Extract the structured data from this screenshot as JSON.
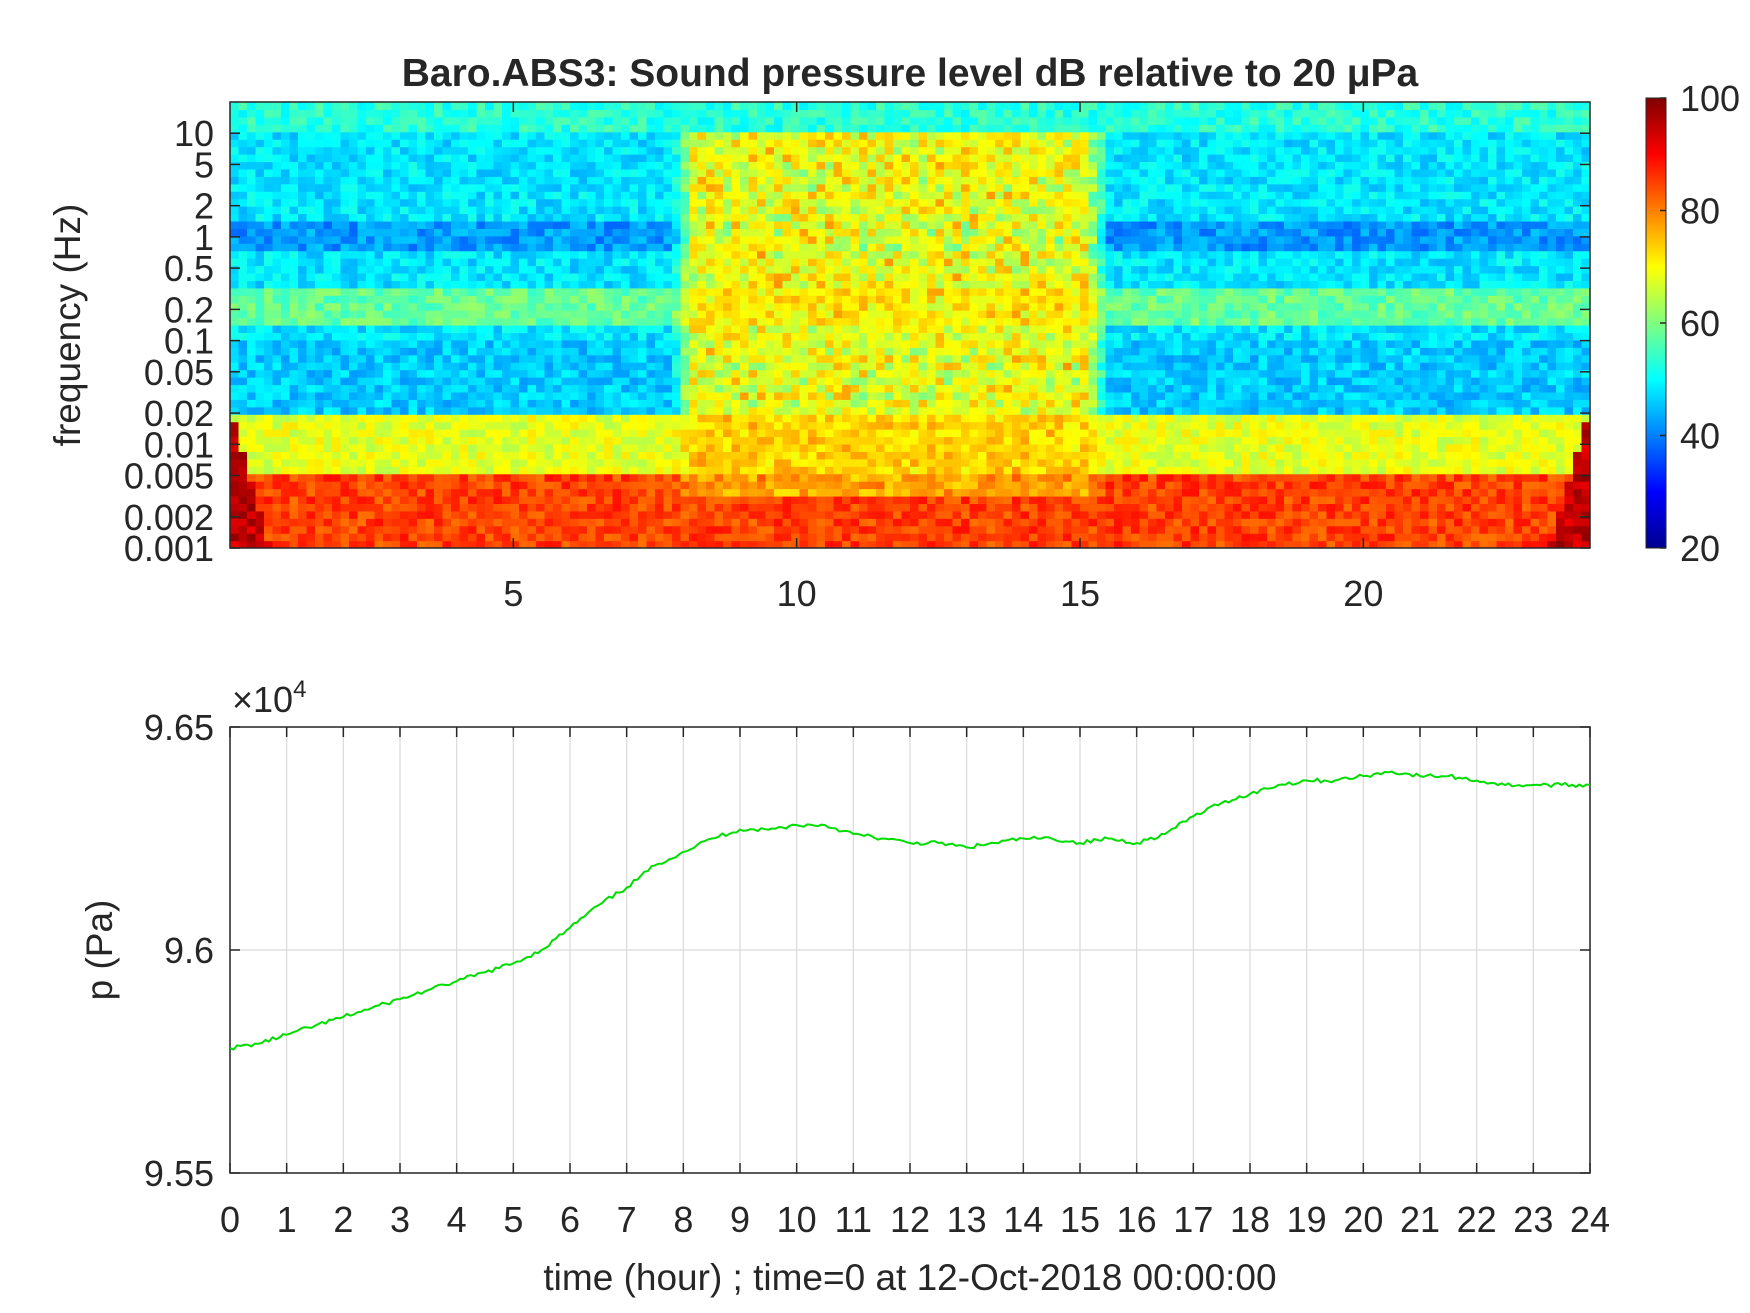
{
  "chart_data": [
    {
      "type": "heatmap",
      "title": "Baro.ABS3: Sound pressure level dB relative to 20 μPa",
      "xlabel": "",
      "ylabel": "frequency (Hz)",
      "x_ticks": [
        5,
        10,
        15,
        20
      ],
      "xlim": [
        0,
        24
      ],
      "y_scale": "log",
      "y_ticks": [
        "0.001",
        "0.002",
        "0.005",
        "0.01",
        "0.02",
        "0.05",
        "0.1",
        "0.2",
        "0.5",
        "1",
        "2",
        "5",
        "10"
      ],
      "y_tick_values": [
        0.001,
        0.002,
        0.005,
        0.01,
        0.02,
        0.05,
        0.1,
        0.2,
        0.5,
        1,
        2,
        5,
        10
      ],
      "ylim": [
        0.001,
        20
      ],
      "colormap": "jet",
      "colorbar": {
        "min": 20,
        "max": 100,
        "ticks": [
          "20",
          "40",
          "60",
          "80",
          "100"
        ]
      },
      "grid": false,
      "bands_db": [
        {
          "freq_range": [
            10,
            20
          ],
          "level_db": 53
        },
        {
          "freq_range": [
            2,
            10
          ],
          "level_db": 48
        },
        {
          "freq_range": [
            0.7,
            1.5
          ],
          "level_db": 42
        },
        {
          "freq_range": [
            0.15,
            0.3
          ],
          "level_db": 58
        },
        {
          "freq_range": [
            0.02,
            0.1
          ],
          "level_db": 46
        },
        {
          "freq_range": [
            0.005,
            0.02
          ],
          "level_db": 68
        },
        {
          "freq_range": [
            0.001,
            0.005
          ],
          "level_db": 85
        }
      ],
      "loud_interval_hours": [
        7.8,
        15.5
      ],
      "loud_interval_level_db": 75
    },
    {
      "type": "line",
      "title": "",
      "xlabel": "time (hour) ; time=0 at 12-Oct-2018 00:00:00",
      "ylabel": "p (Pa)",
      "y_exponent_label": "×10",
      "y_exponent_power": "4",
      "xlim": [
        0,
        24
      ],
      "ylim": [
        9.55,
        9.65
      ],
      "x_ticks": [
        "0",
        "1",
        "2",
        "3",
        "4",
        "5",
        "6",
        "7",
        "8",
        "9",
        "10",
        "11",
        "12",
        "13",
        "14",
        "15",
        "16",
        "17",
        "18",
        "19",
        "20",
        "21",
        "22",
        "23",
        "24"
      ],
      "y_ticks": [
        "9.55",
        "9.6",
        "9.65"
      ],
      "grid": true,
      "series": [
        {
          "color": "#00dd00",
          "x": [
            0,
            0.5,
            1,
            1.5,
            2,
            2.5,
            3,
            3.5,
            4,
            4.5,
            5,
            5.5,
            6,
            6.5,
            7,
            7.5,
            8,
            8.5,
            9,
            9.5,
            10,
            10.5,
            11,
            11.5,
            12,
            12.5,
            13,
            13.5,
            14,
            14.5,
            15,
            15.5,
            16,
            16.5,
            17,
            17.5,
            18,
            18.5,
            19,
            19.5,
            20,
            20.5,
            21,
            21.5,
            22,
            22.5,
            23,
            23.5,
            24
          ],
          "y": [
            9.578,
            9.579,
            9.581,
            9.583,
            9.585,
            9.587,
            9.589,
            9.591,
            9.593,
            9.595,
            9.597,
            9.6,
            9.605,
            9.61,
            9.614,
            9.619,
            9.622,
            9.625,
            9.627,
            9.627,
            9.628,
            9.628,
            9.626,
            9.625,
            9.624,
            9.624,
            9.623,
            9.624,
            9.625,
            9.625,
            9.624,
            9.625,
            9.624,
            9.626,
            9.63,
            9.633,
            9.635,
            9.637,
            9.638,
            9.638,
            9.639,
            9.64,
            9.639,
            9.639,
            9.638,
            9.637,
            9.637,
            9.637,
            9.637
          ]
        }
      ]
    }
  ]
}
